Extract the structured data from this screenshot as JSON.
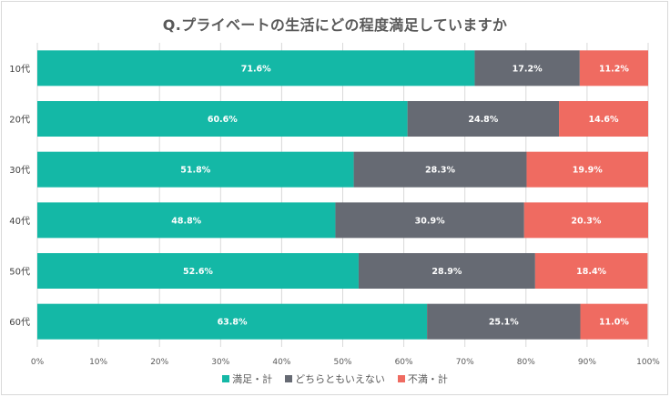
{
  "chart_data": {
    "type": "bar",
    "orientation": "horizontal",
    "stacked": true,
    "title": "Q.プライベートの生活にどの程度満足していますか",
    "categories": [
      "10代",
      "20代",
      "30代",
      "40代",
      "50代",
      "60代"
    ],
    "series": [
      {
        "name": "満足・計",
        "color": "#14b8a6",
        "values": [
          71.6,
          60.6,
          51.8,
          48.8,
          52.6,
          63.8
        ]
      },
      {
        "name": "どちらともいえない",
        "color": "#666a73",
        "values": [
          17.2,
          24.8,
          28.3,
          30.9,
          28.9,
          25.1
        ]
      },
      {
        "name": "不満・計",
        "color": "#ef6b61",
        "values": [
          11.2,
          14.6,
          19.9,
          20.3,
          18.4,
          11.0
        ]
      }
    ],
    "data_label_suffix": "%",
    "xlim": [
      0,
      100
    ],
    "xticks": [
      "0%",
      "10%",
      "20%",
      "30%",
      "40%",
      "50%",
      "60%",
      "70%",
      "80%",
      "90%",
      "100%"
    ],
    "xlabel": "",
    "ylabel": "",
    "grid": true,
    "legend_position": "bottom"
  }
}
